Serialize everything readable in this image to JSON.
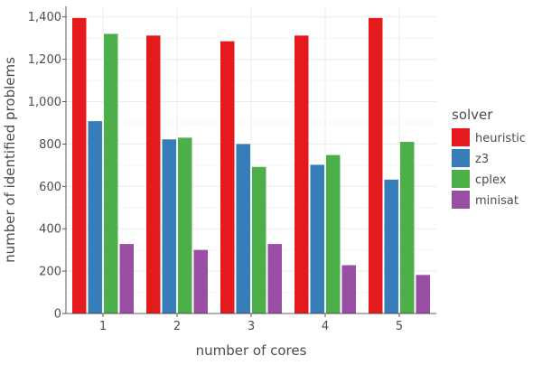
{
  "chart_data": {
    "type": "bar",
    "title": "",
    "xlabel": "number of cores",
    "ylabel": "number of identified problems",
    "categories": [
      "1",
      "2",
      "3",
      "4",
      "5"
    ],
    "ylim": [
      0,
      1450
    ],
    "yticks": [
      0,
      200,
      400,
      600,
      800,
      1000,
      1200,
      1400
    ],
    "ytick_labels": [
      "0",
      "200",
      "400",
      "600",
      "800",
      "1,000",
      "1,200",
      "1,400"
    ],
    "grid": true,
    "legend_title": "solver",
    "legend_position": "right",
    "series": [
      {
        "name": "heuristic",
        "color": "#e41a1c",
        "values": [
          1395,
          1312,
          1285,
          1312,
          1395
        ]
      },
      {
        "name": "z3",
        "color": "#377eb8",
        "values": [
          908,
          822,
          800,
          702,
          632
        ]
      },
      {
        "name": "cplex",
        "color": "#4daf4a",
        "values": [
          1320,
          830,
          692,
          748,
          810
        ]
      },
      {
        "name": "minisat",
        "color": "#984ea3",
        "values": [
          328,
          300,
          328,
          228,
          182
        ]
      }
    ]
  }
}
